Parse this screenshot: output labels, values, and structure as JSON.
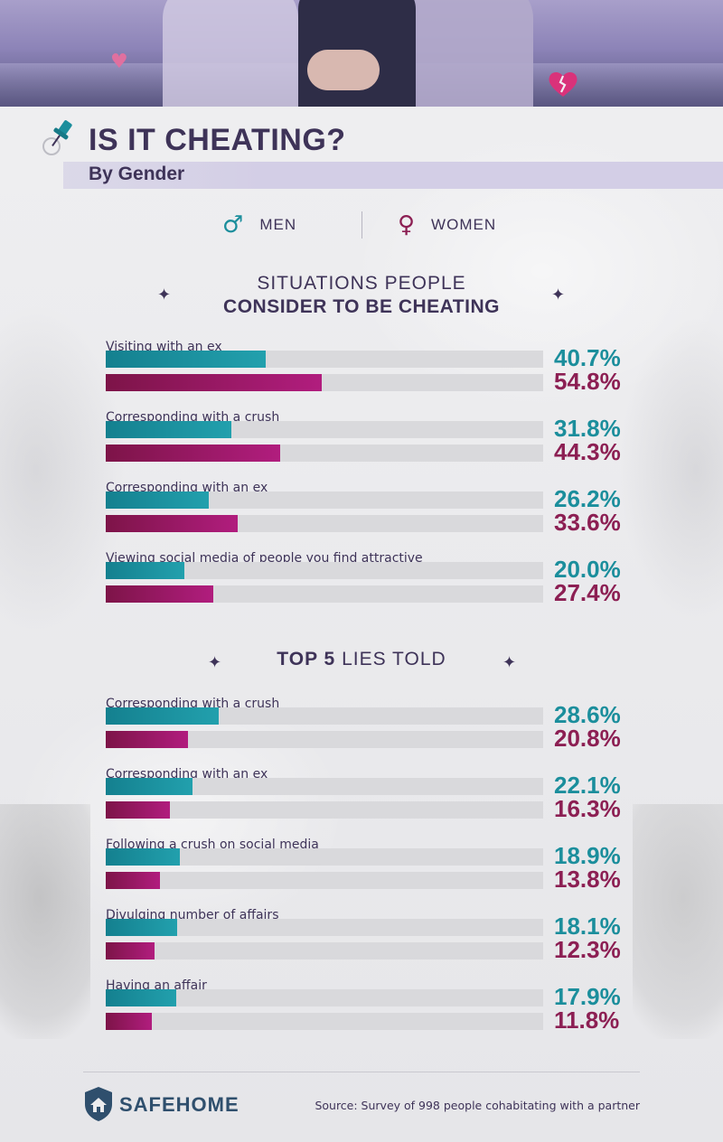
{
  "header": {
    "title": "IS IT CHEATING?",
    "subtitle": "By Gender"
  },
  "legend": {
    "men_label": "MEN",
    "women_label": "WOMEN",
    "men_symbol": "♂",
    "women_symbol": "♀",
    "men_color": "#1b8e9c",
    "women_color": "#8c1f53"
  },
  "sections": {
    "cheating_title_line1": "SITUATIONS PEOPLE",
    "cheating_title_line2": "CONSIDER TO BE CHEATING",
    "lies_title_bold": "TOP 5",
    "lies_title_rest": " LIES TOLD"
  },
  "chart_data": [
    {
      "type": "bar",
      "orientation": "horizontal",
      "title": "SITUATIONS PEOPLE CONSIDER TO BE CHEATING",
      "categories": [
        "Visiting with an ex",
        "Corresponding with a crush",
        "Corresponding with an ex",
        "Viewing social media of people you find attractive"
      ],
      "series": [
        {
          "name": "MEN",
          "values": [
            40.7,
            31.8,
            26.2,
            20.0
          ],
          "labels": [
            "40.7%",
            "31.8%",
            "26.2%",
            "20.0%"
          ]
        },
        {
          "name": "WOMEN",
          "values": [
            54.8,
            44.3,
            33.6,
            27.4
          ],
          "labels": [
            "54.8%",
            "44.3%",
            "33.6%",
            "27.4%"
          ]
        }
      ],
      "xlim": [
        0,
        100
      ]
    },
    {
      "type": "bar",
      "orientation": "horizontal",
      "title": "TOP 5 LIES TOLD",
      "categories": [
        "Corresponding with a crush",
        "Corresponding with an ex",
        "Following a crush on social media",
        "Divulging number of affairs",
        "Having an affair"
      ],
      "series": [
        {
          "name": "MEN",
          "values": [
            28.6,
            22.1,
            18.9,
            18.1,
            17.9
          ],
          "labels": [
            "28.6%",
            "22.1%",
            "18.9%",
            "18.1%",
            "17.9%"
          ]
        },
        {
          "name": "WOMEN",
          "values": [
            20.8,
            16.3,
            13.8,
            12.3,
            11.8
          ],
          "labels": [
            "20.8%",
            "16.3%",
            "13.8%",
            "12.3%",
            "11.8%"
          ]
        }
      ],
      "xlim": [
        0,
        100
      ]
    }
  ],
  "footer": {
    "logo_text": "SAFEHOME",
    "source": "Source: Survey of 998 people cohabitating with a partner"
  }
}
